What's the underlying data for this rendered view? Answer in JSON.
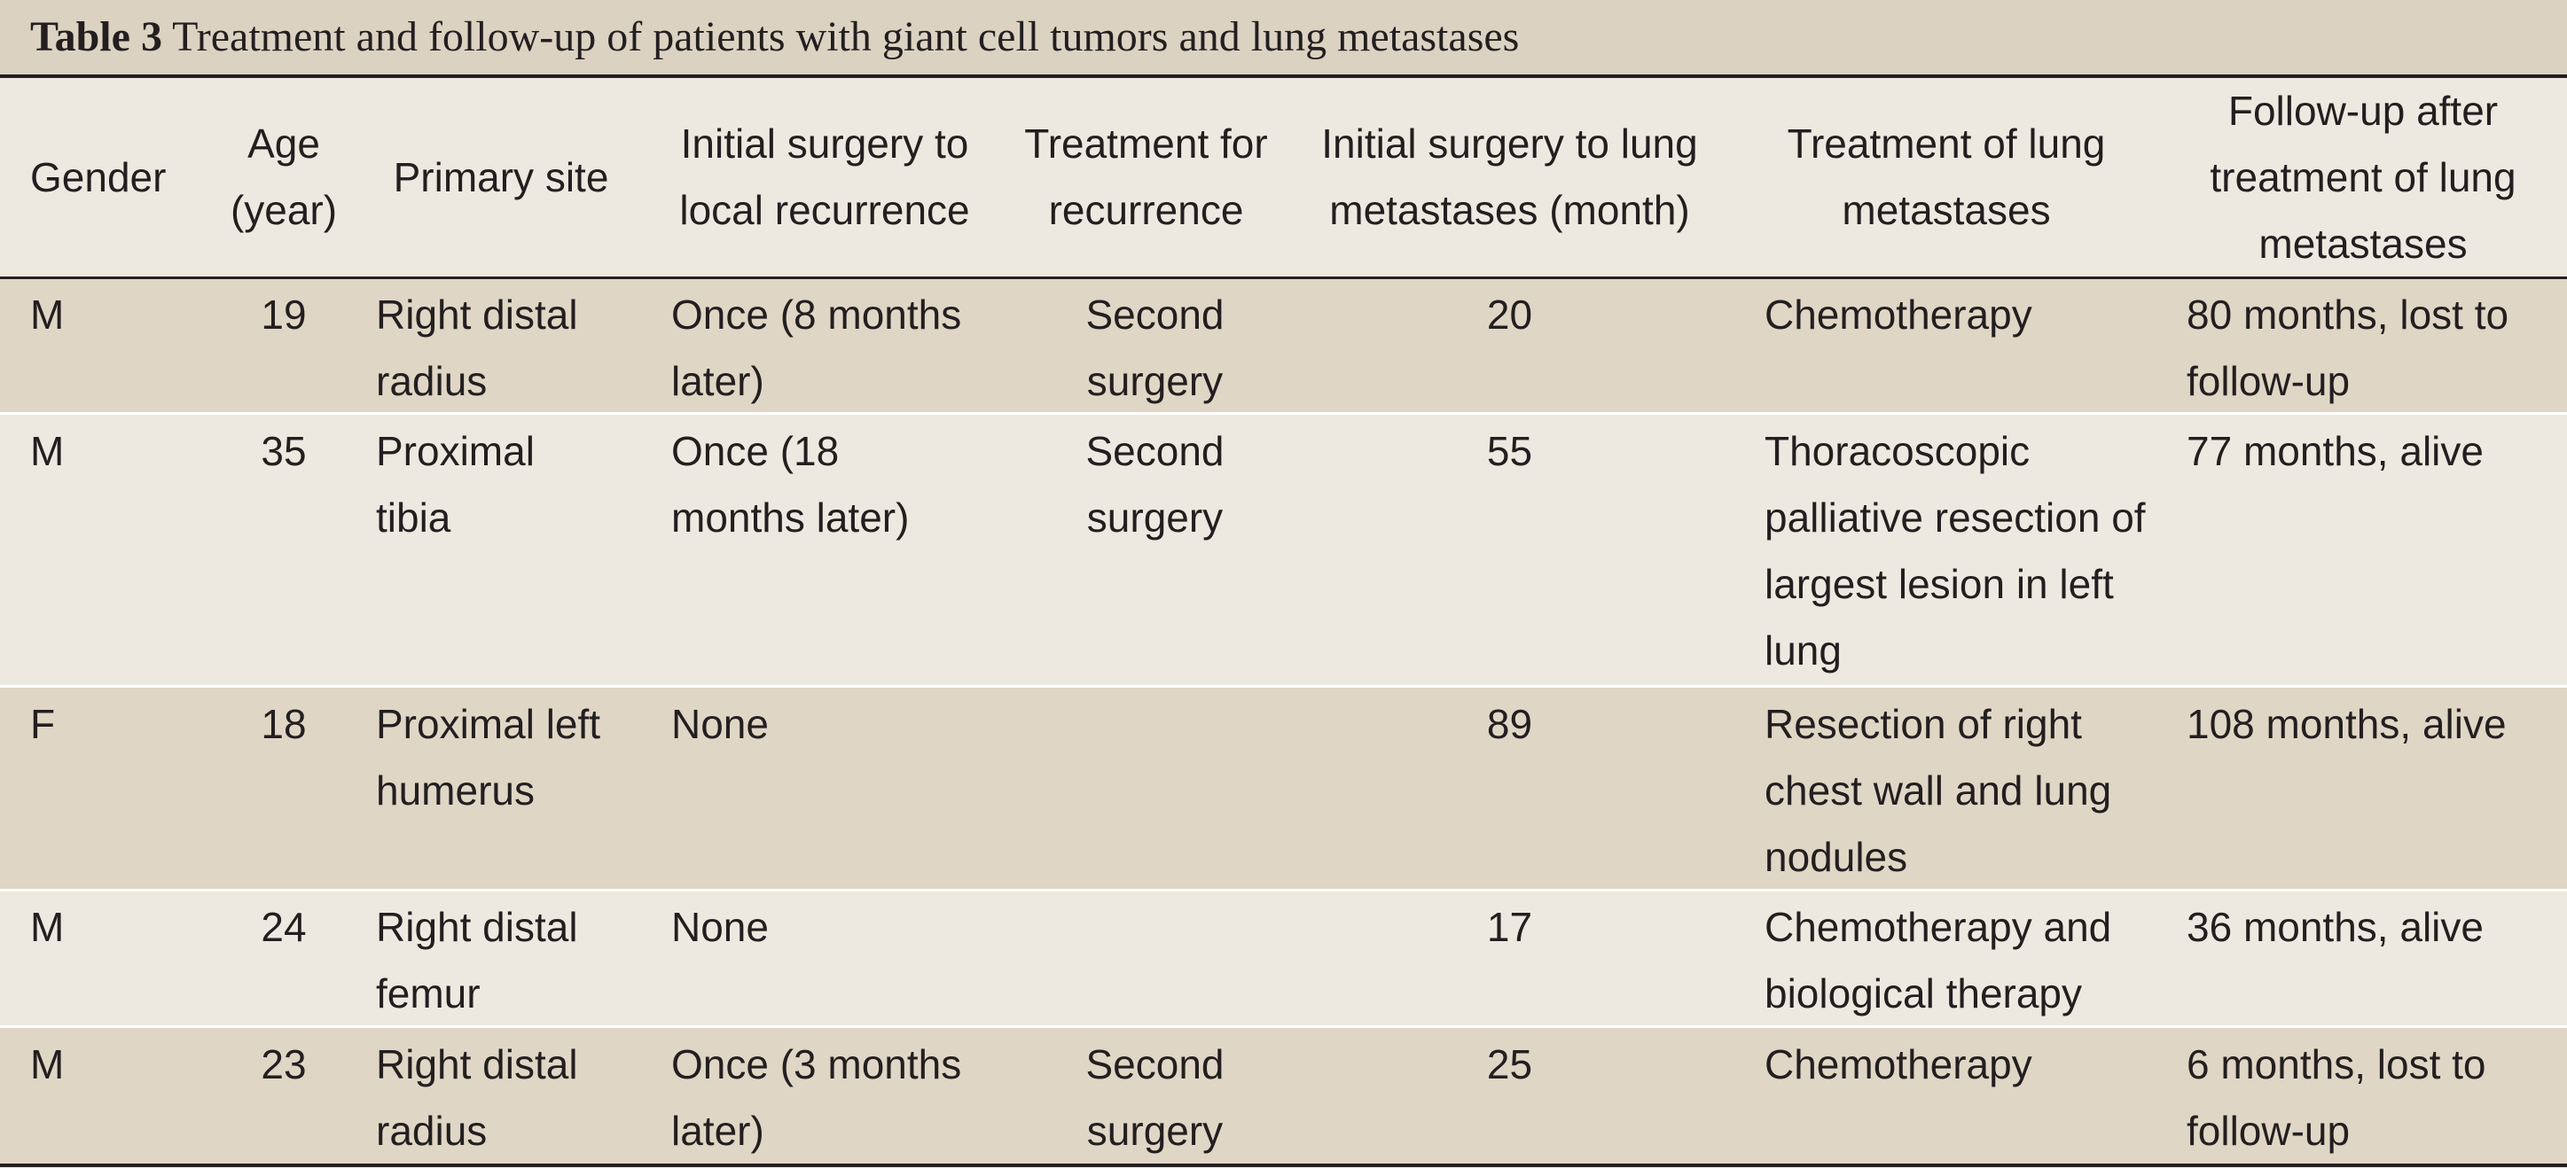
{
  "caption": {
    "number": "Table 3",
    "title": "Treatment and follow-up of patients with giant cell tumors and lung metastases"
  },
  "columns": [
    "Gender",
    "Age (year)",
    "Primary site",
    "Initial surgery to local recurrence",
    "Treatment for recurrence",
    "Initial surgery to lung metastases (month)",
    "Treatment of lung metastases",
    "Follow-up after treatment of lung metastases"
  ],
  "rows": [
    {
      "gender": "M",
      "age": "19",
      "site": "Right distal radius",
      "recurrence": "Once (8 months later)",
      "recurrence_treatment": "Second surgery",
      "months_to_mets": "20",
      "mets_treatment": "Chemotherapy",
      "followup": "80 months, lost to follow-up"
    },
    {
      "gender": "M",
      "age": "35",
      "site": "Proximal tibia",
      "recurrence": "Once (18 months later)",
      "recurrence_treatment": "Second surgery",
      "months_to_mets": "55",
      "mets_treatment": "Thoracoscopic palliative resection of largest lesion in left lung",
      "followup": "77 months, alive"
    },
    {
      "gender": "F",
      "age": "18",
      "site": "Proximal left humerus",
      "recurrence": "None",
      "recurrence_treatment": "",
      "months_to_mets": "89",
      "mets_treatment": "Resection of right chest wall and lung nodules",
      "followup": "108 months, alive"
    },
    {
      "gender": "M",
      "age": "24",
      "site": "Right distal femur",
      "recurrence": "None",
      "recurrence_treatment": "",
      "months_to_mets": "17",
      "mets_treatment": "Chemotherapy and biological therapy",
      "followup": "36 months, alive"
    },
    {
      "gender": "M",
      "age": "23",
      "site": "Right distal radius",
      "recurrence": "Once (3 months later)",
      "recurrence_treatment": "Second surgery",
      "months_to_mets": "25",
      "mets_treatment": "Chemotherapy",
      "followup": "6 months, lost to follow-up"
    }
  ]
}
